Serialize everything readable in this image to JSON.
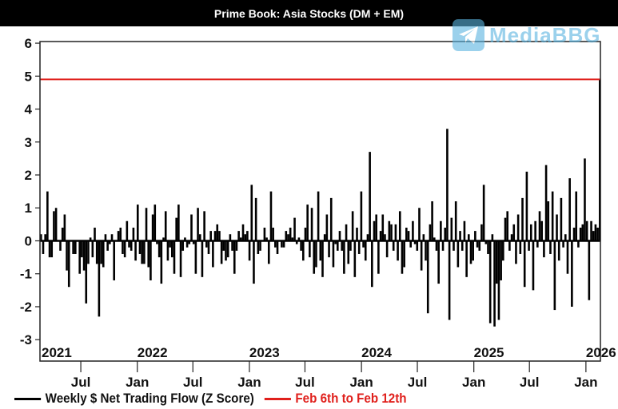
{
  "chart_data": {
    "type": "bar",
    "title": "Prime Book: Asia Stocks (DM + EM)",
    "frequency": "weekly",
    "x_start": "2021-02-18",
    "x_end": "2026-02-12",
    "ylim": [
      -3.65,
      6.05
    ],
    "yticks": [
      6,
      5,
      4,
      3,
      2,
      1,
      0,
      -1,
      -2,
      -3
    ],
    "year_labels": [
      "2021",
      "2022",
      "2023",
      "2024",
      "2025",
      "2026"
    ],
    "month_labels": [
      "Jul",
      "Jan",
      "Jul",
      "Jan",
      "Jul",
      "Jan",
      "Jul",
      "Jan",
      "Jul",
      "Jan"
    ],
    "grid": false,
    "legend_position": "bottom",
    "series": [
      {
        "name": "Weekly $ Net Trading Flow (Z Score)",
        "color": "#000000",
        "values": [
          0.2,
          -0.4,
          0.2,
          1.5,
          -0.5,
          -0.5,
          0.9,
          1.0,
          0.0,
          -0.3,
          0.4,
          0.8,
          -0.9,
          -1.4,
          0.0,
          -0.4,
          -0.4,
          0.0,
          -1.0,
          -0.5,
          -0.9,
          -1.9,
          -0.7,
          0.1,
          -0.5,
          0.4,
          -0.7,
          -2.3,
          -0.7,
          -0.8,
          0.2,
          -0.3,
          -0.1,
          0.2,
          -1.2,
          0.0,
          0.3,
          0.4,
          -0.4,
          -0.5,
          0.6,
          -0.2,
          -0.3,
          0.4,
          -0.6,
          1.1,
          -0.4,
          -0.7,
          -0.7,
          1.0,
          -0.8,
          -1.2,
          0.8,
          1.1,
          -0.1,
          -0.5,
          -1.3,
          0.1,
          0.9,
          -0.6,
          -0.2,
          -0.5,
          -1.0,
          0.7,
          1.1,
          -1.1,
          -0.3,
          0.1,
          -0.2,
          -0.1,
          0.8,
          -0.1,
          -1.0,
          1.0,
          0.2,
          -1.1,
          0.9,
          -0.2,
          -0.4,
          0.3,
          -0.8,
          0.3,
          0.5,
          0.3,
          -0.7,
          -0.3,
          -0.6,
          -0.5,
          0.2,
          -0.3,
          -1.0,
          -0.3,
          0.3,
          0.1,
          0.5,
          0.2,
          0.3,
          -0.6,
          1.7,
          -1.3,
          1.3,
          -0.4,
          -0.3,
          0.0,
          0.4,
          0.1,
          -0.7,
          1.5,
          0.4,
          -0.2,
          -0.4,
          0.0,
          -0.2,
          -0.2,
          0.3,
          0.2,
          0.4,
          0.1,
          0.7,
          -0.1,
          0.1,
          -0.3,
          -0.6,
          0.4,
          1.1,
          -0.5,
          1.0,
          -1.0,
          -0.8,
          1.5,
          -0.6,
          -1.1,
          0.2,
          0.8,
          -0.5,
          1.3,
          -0.8,
          -0.1,
          -0.3,
          0.3,
          -0.3,
          -1.0,
          0.5,
          -0.7,
          -0.3,
          0.9,
          -1.1,
          0.4,
          -0.4,
          1.5,
          -0.2,
          -0.6,
          0.2,
          2.7,
          -1.4,
          0.6,
          0.8,
          -1.0,
          0.3,
          0.8,
          0.2,
          -0.5,
          0.6,
          0.5,
          -0.3,
          0.5,
          -0.6,
          0.9,
          -1.0,
          -0.8,
          0.4,
          0.3,
          -0.2,
          0.6,
          -0.1,
          -0.3,
          1.0,
          -0.9,
          0.2,
          -0.6,
          -2.2,
          0.5,
          1.2,
          0.1,
          -0.3,
          -1.3,
          0.6,
          -0.3,
          0.4,
          3.4,
          -2.4,
          0.7,
          -0.3,
          1.2,
          -0.8,
          0.3,
          -0.3,
          0.6,
          -1.1,
          0.2,
          -0.7,
          -0.6,
          0.3,
          -0.2,
          -0.3,
          0.5,
          1.7,
          -0.1,
          -0.4,
          -2.5,
          0.2,
          -2.6,
          -1.3,
          -2.4,
          -1.2,
          -0.6,
          0.7,
          0.9,
          -0.3,
          0.2,
          0.5,
          -0.7,
          0.8,
          -0.4,
          1.3,
          -1.4,
          2.1,
          -0.3,
          0.5,
          -1.5,
          0.6,
          -0.2,
          0.9,
          0.6,
          -0.5,
          2.3,
          1.2,
          -0.4,
          1.5,
          -2.1,
          0.8,
          -0.6,
          1.3,
          -0.2,
          0.2,
          -1.0,
          1.9,
          -2.0,
          0.4,
          1.5,
          -0.2,
          0.4,
          0.5,
          2.5,
          0.6,
          -1.8,
          0.6,
          0.3,
          0.5,
          0.4,
          4.9
        ]
      },
      {
        "name": "Feb 6th to Feb 12th",
        "color": "#e0201c",
        "type": "hline",
        "value": 4.9
      }
    ]
  },
  "watermark": {
    "text": "MediaBBG",
    "icon": "telegram-plane-icon"
  }
}
